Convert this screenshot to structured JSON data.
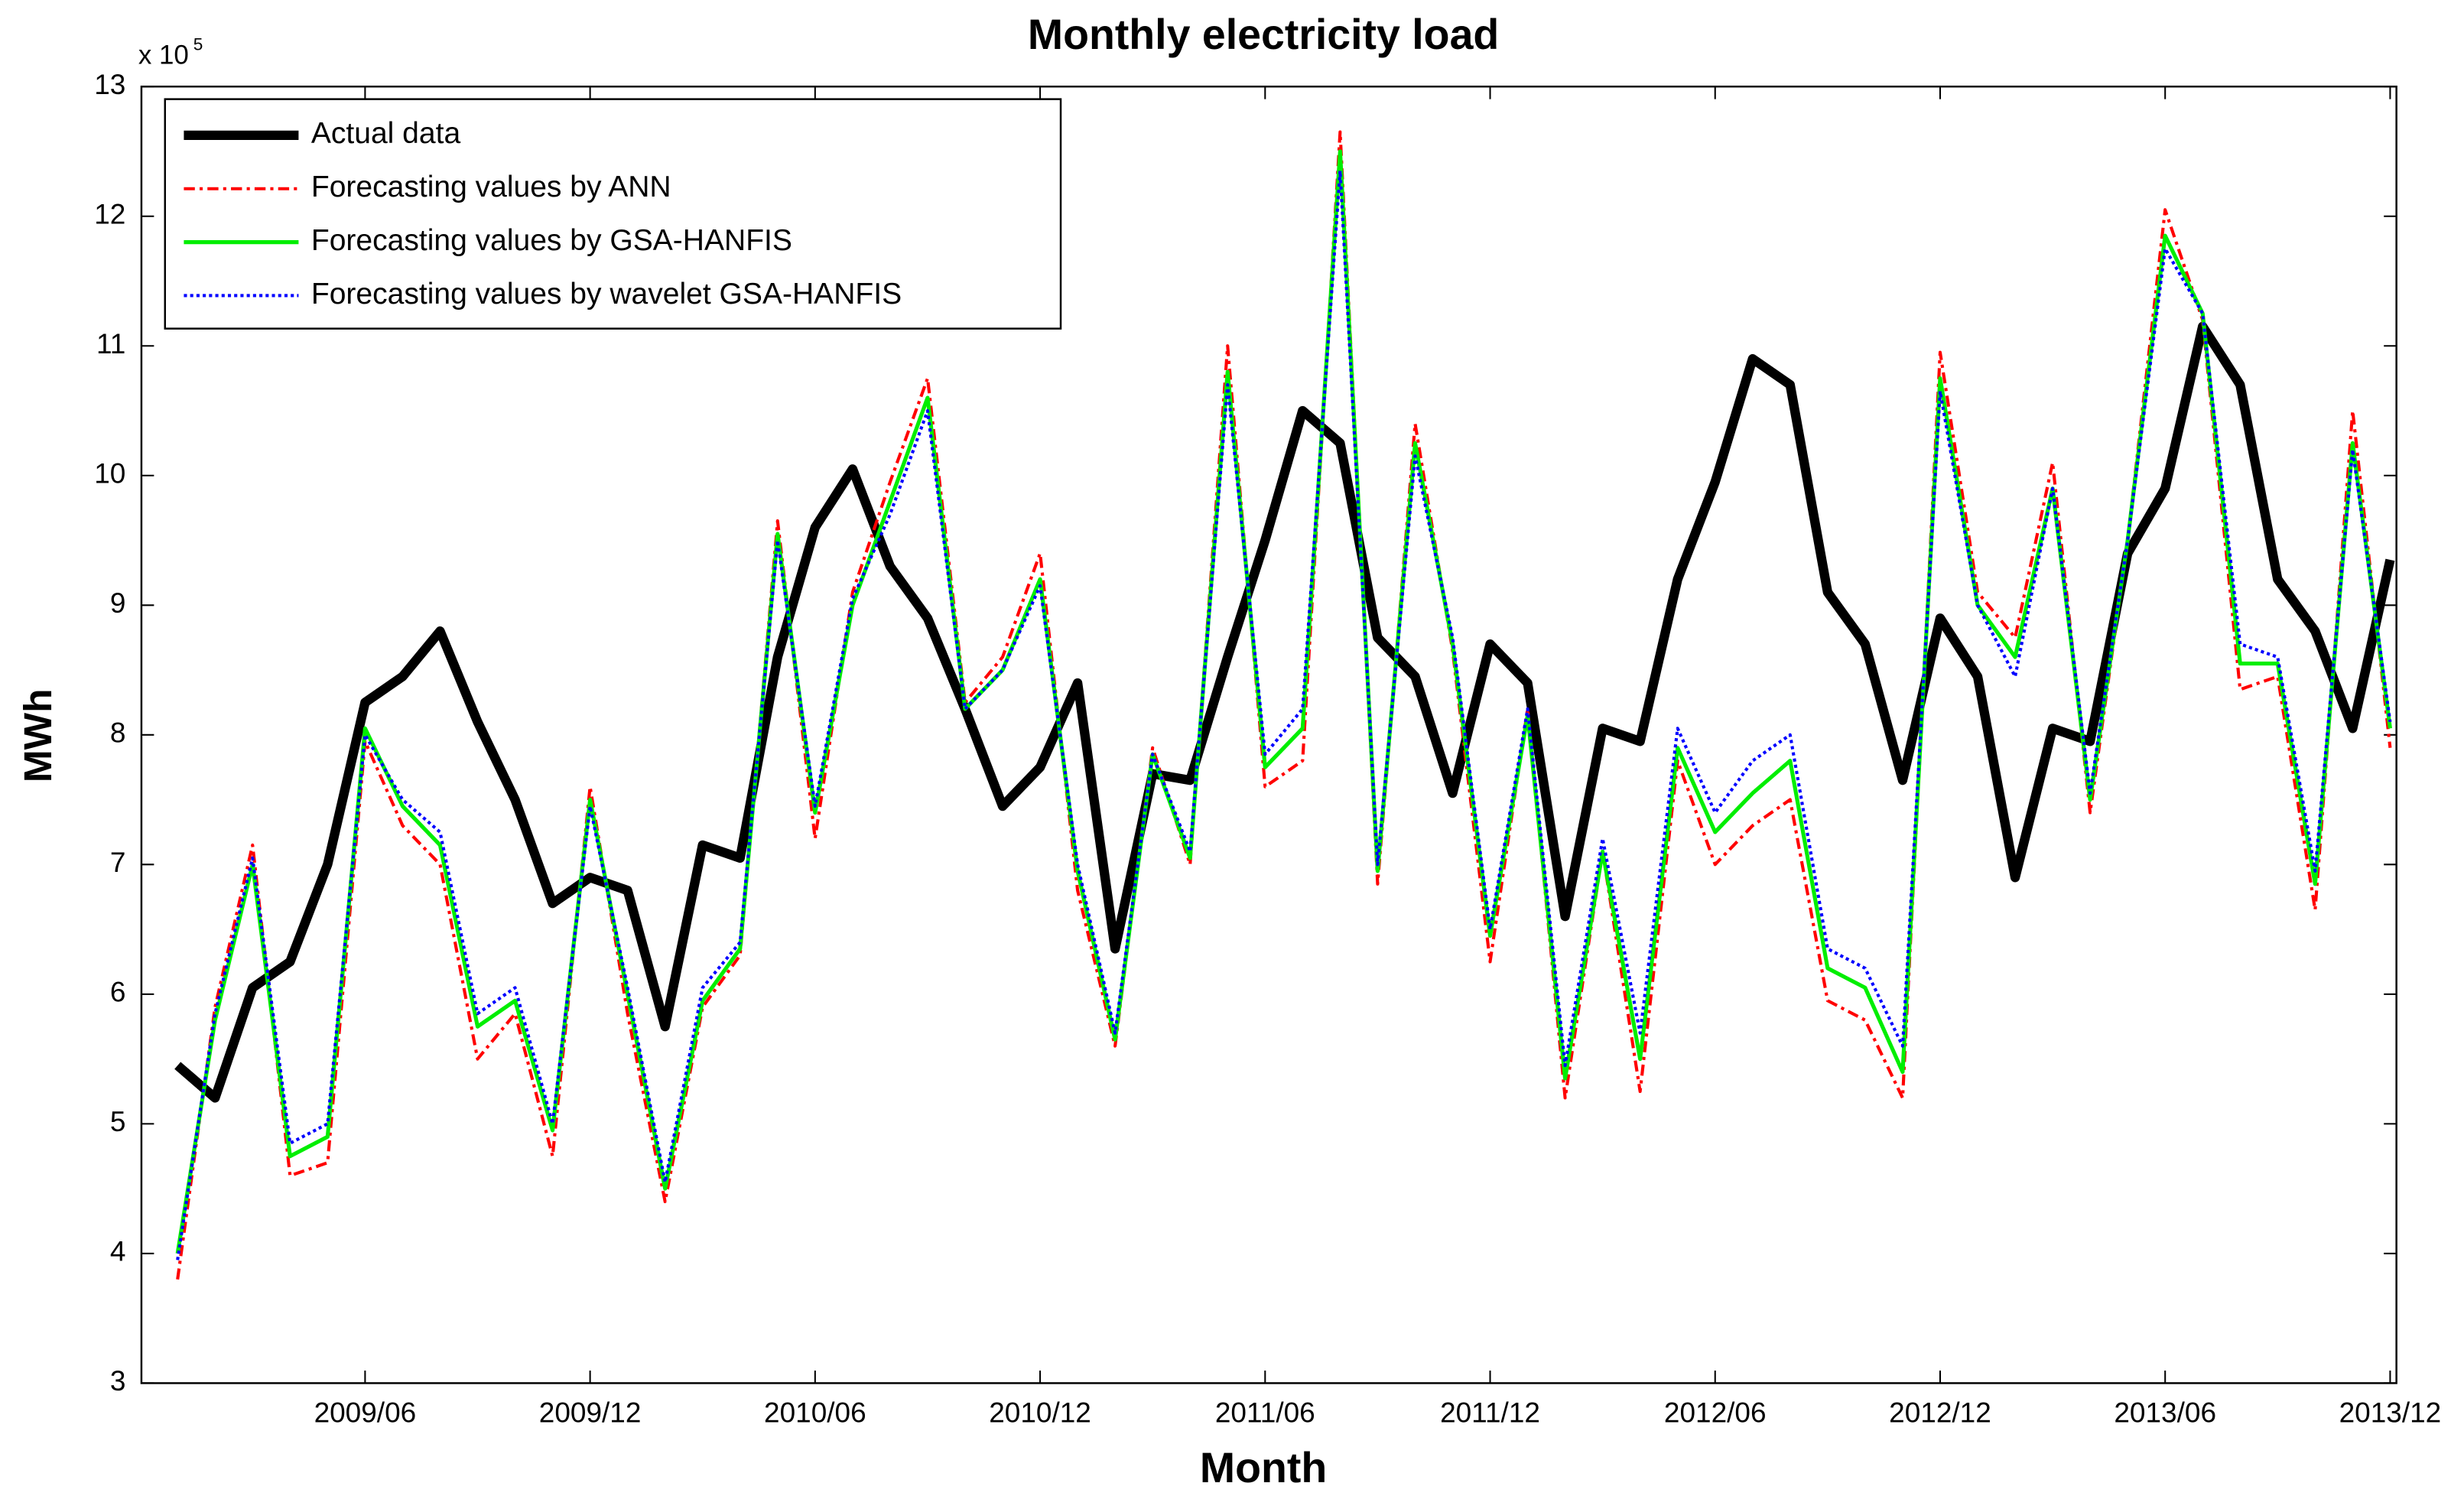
{
  "chart_data": {
    "type": "line",
    "title": "Monthly electricity load",
    "x_label": "Month",
    "y_label": "MWh",
    "y_multiplier_base": "x 10",
    "y_multiplier_exponent": "5",
    "categories": [
      null,
      null,
      null,
      null,
      null,
      "2009/06",
      null,
      null,
      null,
      null,
      null,
      "2009/12",
      null,
      null,
      null,
      null,
      null,
      "2010/06",
      null,
      null,
      null,
      null,
      null,
      "2010/12",
      null,
      null,
      null,
      null,
      null,
      "2011/06",
      null,
      null,
      null,
      null,
      null,
      "2011/12",
      null,
      null,
      null,
      null,
      null,
      "2012/06",
      null,
      null,
      null,
      null,
      null,
      "2012/12",
      null,
      null,
      null,
      null,
      null,
      "2013/06",
      null,
      null,
      null,
      null,
      null,
      "2013/12"
    ],
    "ylim": [
      3,
      13
    ],
    "yticks": [
      3,
      4,
      5,
      6,
      7,
      8,
      9,
      10,
      11,
      12,
      13
    ],
    "grid": false,
    "legend": "upper left",
    "series": [
      {
        "name": "Actual data",
        "color": "#000000",
        "width": 6,
        "dash": "none",
        "values": [
          5.45,
          5.2,
          6.05,
          6.25,
          7.0,
          8.25,
          8.45,
          8.8,
          8.1,
          7.5,
          6.7,
          6.9,
          6.8,
          5.75,
          7.15,
          7.05,
          8.6,
          9.6,
          10.05,
          9.3,
          8.9,
          8.2,
          7.45,
          7.75,
          8.4,
          6.35,
          7.7,
          7.65,
          8.6,
          9.5,
          10.5,
          10.25,
          8.75,
          8.45,
          7.55,
          8.7,
          8.4,
          6.6,
          8.05,
          7.95,
          9.2,
          9.95,
          10.9,
          10.7,
          9.1,
          8.7,
          7.65,
          8.9,
          8.45,
          6.9,
          8.05,
          7.95,
          9.4,
          9.9,
          11.15,
          10.7,
          9.2,
          8.8,
          8.05,
          9.35
        ]
      },
      {
        "name": "Forecasting values by ANN",
        "color": "#ff0000",
        "width": 2,
        "dash": "7 3 2 3",
        "values": [
          3.8,
          5.9,
          7.15,
          4.6,
          4.7,
          7.95,
          7.3,
          7.0,
          5.5,
          5.85,
          4.75,
          7.6,
          5.85,
          4.4,
          5.9,
          6.3,
          9.65,
          7.2,
          9.1,
          9.95,
          10.75,
          8.25,
          8.6,
          9.4,
          6.8,
          5.6,
          7.9,
          7.0,
          11.0,
          7.6,
          7.8,
          12.65,
          6.85,
          10.4,
          8.65,
          6.25,
          8.2,
          5.2,
          7.1,
          5.25,
          7.8,
          7.0,
          7.3,
          7.5,
          5.95,
          5.8,
          5.2,
          10.95,
          9.1,
          8.75,
          10.1,
          7.4,
          9.5,
          12.05,
          11.2,
          8.35,
          8.45,
          6.65,
          10.5,
          7.9
        ]
      },
      {
        "name": "Forecasting values by GSA-HANFIS",
        "color": "#00ee00",
        "width": 2.5,
        "dash": "none",
        "values": [
          4.0,
          5.8,
          7.0,
          4.75,
          4.9,
          8.05,
          7.45,
          7.15,
          5.75,
          5.95,
          4.95,
          7.5,
          6.0,
          4.5,
          5.95,
          6.35,
          9.55,
          7.4,
          9.0,
          9.8,
          10.6,
          8.2,
          8.5,
          9.2,
          6.95,
          5.65,
          7.85,
          7.05,
          10.8,
          7.75,
          8.05,
          12.5,
          6.95,
          10.25,
          8.7,
          6.45,
          8.15,
          5.35,
          7.1,
          5.5,
          7.9,
          7.25,
          7.55,
          7.8,
          6.2,
          6.05,
          5.4,
          10.75,
          9.0,
          8.6,
          9.9,
          7.5,
          9.5,
          11.85,
          11.25,
          8.55,
          8.55,
          6.85,
          10.25,
          8.05
        ]
      },
      {
        "name": "Forecasting values by wavelet GSA-HANFIS",
        "color": "#0000ff",
        "width": 2,
        "dash": "2 2",
        "values": [
          3.95,
          5.85,
          7.05,
          4.85,
          5.0,
          8.0,
          7.5,
          7.25,
          5.85,
          6.05,
          5.0,
          7.45,
          6.05,
          4.55,
          6.05,
          6.4,
          9.5,
          7.45,
          9.05,
          9.7,
          10.5,
          8.2,
          8.5,
          9.15,
          7.0,
          5.7,
          7.85,
          7.1,
          10.7,
          7.85,
          8.2,
          12.35,
          7.0,
          10.15,
          8.75,
          6.5,
          8.2,
          5.45,
          7.2,
          5.7,
          8.05,
          7.4,
          7.8,
          8.0,
          6.35,
          6.2,
          5.6,
          10.65,
          9.0,
          8.45,
          9.9,
          7.55,
          9.5,
          11.75,
          11.25,
          8.7,
          8.6,
          6.95,
          10.2,
          8.1
        ]
      }
    ]
  }
}
